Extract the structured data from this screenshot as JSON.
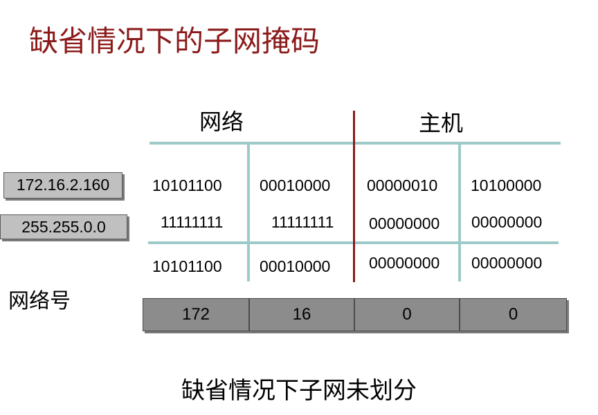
{
  "title": "缺省情况下的子网掩码",
  "headers": {
    "network": "网络",
    "host": "主机"
  },
  "ip_address": "172.16.2.160",
  "subnet_mask": "255.255.0.0",
  "rows": {
    "ip_bits": [
      "10101100",
      "00010000",
      "00000010",
      "10100000"
    ],
    "mask_bits": [
      "11111111",
      "11111111",
      "00000000",
      "00000000"
    ],
    "and_bits": [
      "10101100",
      "00010000",
      "00000000",
      "00000000"
    ]
  },
  "network_number_label": "网络号",
  "network_number": [
    "172",
    "16",
    "0",
    "0"
  ],
  "caption": "缺省情况下子网未划分",
  "colors": {
    "title": "#8b1a1a",
    "grid_line": "#9ec9c9",
    "divider": "#8b1a1a",
    "ip_box": "#c0c0c0",
    "result_cell": "#8c8c8c"
  }
}
